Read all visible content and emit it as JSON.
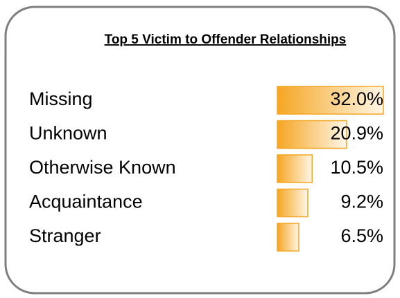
{
  "chart_data": {
    "type": "bar",
    "title": "Top 5 Victim to Offender Relationships",
    "categories": [
      "Missing",
      "Unknown",
      "Otherwise Known",
      "Acquaintance",
      "Stranger"
    ],
    "values": [
      32.0,
      20.9,
      10.5,
      9.2,
      6.5
    ],
    "value_labels": [
      "32.0%",
      "20.9%",
      "10.5%",
      "9.2%",
      "6.5%"
    ],
    "color": "#f5a623"
  }
}
